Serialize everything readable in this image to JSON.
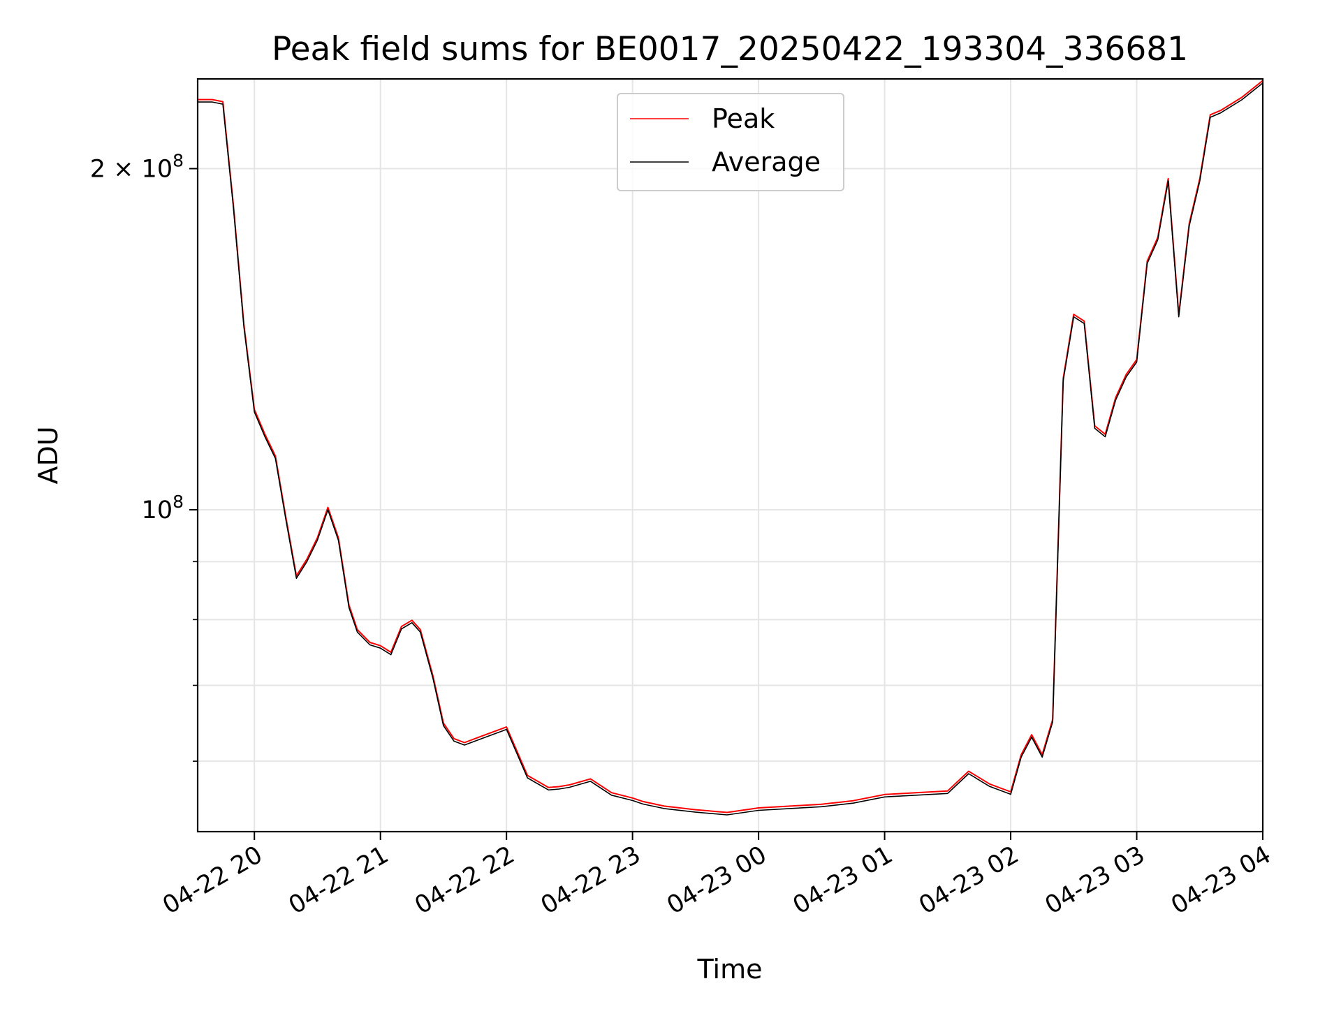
{
  "chart_data": {
    "type": "line",
    "title": "Peak field sums for BE0017_20250422_193304_336681",
    "xlabel": "Time",
    "ylabel": "ADU",
    "yscale": "log",
    "xlim": [
      "04-22 19:33",
      "04-23 04:00"
    ],
    "ylim": [
      52000000,
      240000000
    ],
    "grid": true,
    "legend_position": "top-center",
    "x_ticks": [
      "04-22 20",
      "04-22 21",
      "04-22 22",
      "04-22 23",
      "04-23 00",
      "04-23 01",
      "04-23 02",
      "04-23 03",
      "04-23 04"
    ],
    "y_ticks": [
      {
        "value": 100000000,
        "label_base": "10",
        "label_exp": "8",
        "label_prefix": ""
      },
      {
        "value": 200000000,
        "label_base": "10",
        "label_exp": "8",
        "label_prefix": "2 × "
      }
    ],
    "y_minor_ticks": [
      60000000,
      70000000,
      80000000,
      90000000
    ],
    "series": [
      {
        "name": "Peak",
        "color": "#ff0000"
      },
      {
        "name": "Average",
        "color": "#000000"
      }
    ],
    "x": [
      "04-22 19:33",
      "04-22 19:40",
      "04-22 19:45",
      "04-22 19:50",
      "04-22 19:55",
      "04-22 20:00",
      "04-22 20:05",
      "04-22 20:10",
      "04-22 20:15",
      "04-22 20:20",
      "04-22 20:25",
      "04-22 20:30",
      "04-22 20:35",
      "04-22 20:40",
      "04-22 20:45",
      "04-22 20:49",
      "04-22 20:55",
      "04-22 21:00",
      "04-22 21:05",
      "04-22 21:10",
      "04-22 21:15",
      "04-22 21:19",
      "04-22 21:25",
      "04-22 21:30",
      "04-22 21:35",
      "04-22 21:40",
      "04-22 21:45",
      "04-22 21:50",
      "04-22 22:00",
      "04-22 22:10",
      "04-22 22:20",
      "04-22 22:25",
      "04-22 22:30",
      "04-22 22:40",
      "04-22 22:50",
      "04-22 23:00",
      "04-22 23:05",
      "04-22 23:15",
      "04-22 23:30",
      "04-22 23:45",
      "04-23 00:00",
      "04-23 00:15",
      "04-23 00:30",
      "04-23 00:45",
      "04-23 01:00",
      "04-23 01:15",
      "04-23 01:30",
      "04-23 01:40",
      "04-23 01:50",
      "04-23 02:00",
      "04-23 02:05",
      "04-23 02:10",
      "04-23 02:15",
      "04-23 02:20",
      "04-23 02:25",
      "04-23 02:30",
      "04-23 02:35",
      "04-23 02:40",
      "04-23 02:45",
      "04-23 02:50",
      "04-23 02:55",
      "04-23 03:00",
      "04-23 03:05",
      "04-23 03:10",
      "04-23 03:15",
      "04-23 03:20",
      "04-23 03:25",
      "04-23 03:30",
      "04-23 03:35",
      "04-23 03:40",
      "04-23 03:50",
      "04-23 04:00"
    ],
    "values": [
      229000000,
      229000000,
      228000000,
      185000000,
      145000000,
      122000000,
      116000000,
      111000000,
      98000000,
      87000000,
      90000000,
      94000000,
      100000000,
      94000000,
      82000000,
      78000000,
      76000000,
      75500000,
      74500000,
      78500000,
      79500000,
      78000000,
      71000000,
      64500000,
      62500000,
      62000000,
      62500000,
      63000000,
      64000000,
      58000000,
      56600000,
      56700000,
      56900000,
      57600000,
      56000000,
      55400000,
      55000000,
      54500000,
      54100000,
      53800000,
      54300000,
      54500000,
      54700000,
      55100000,
      55800000,
      56000000,
      56200000,
      58500000,
      57000000,
      56100000,
      60500000,
      63000000,
      60500000,
      65000000,
      130000000,
      148000000,
      146000000,
      118000000,
      116000000,
      125000000,
      131000000,
      135000000,
      165000000,
      173000000,
      195000000,
      148000000,
      178000000,
      195000000,
      222000000,
      224000000,
      230000000,
      238000000
    ]
  }
}
